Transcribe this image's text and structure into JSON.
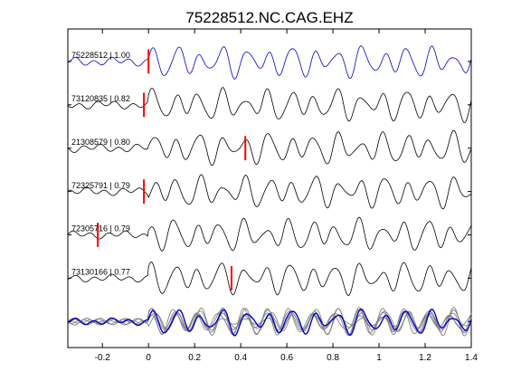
{
  "chart_data": {
    "type": "line",
    "title": "75228512.NC.CAG.EHZ",
    "xlabel": "",
    "ylabel": "",
    "xlim": [
      -0.35,
      1.4
    ],
    "xticks": [
      -0.2,
      0,
      0.2,
      0.4,
      0.6,
      0.8,
      1,
      1.2,
      1.4
    ],
    "xtick_labels": [
      "-0.2",
      "0",
      "0.2",
      "0.4",
      "0.6",
      "0.8",
      "1",
      "1.2",
      "1.4"
    ],
    "grid": false,
    "legend": "none",
    "colors": {
      "primary": "#0000cc",
      "trace": "#000000",
      "stack": "#808080",
      "pick": "#ff0000"
    },
    "series": [
      {
        "label": "75228512 | 1.00",
        "pick_time": 0.0,
        "color": "#0000cc",
        "seed": 1
      },
      {
        "label": "73120835 | 0.82",
        "pick_time": -0.02,
        "color": "#000000",
        "seed": 2
      },
      {
        "label": "21308579 | 0.80",
        "pick_time": 0.42,
        "color": "#000000",
        "seed": 3
      },
      {
        "label": "72325791 | 0.79",
        "pick_time": -0.02,
        "color": "#000000",
        "seed": 4
      },
      {
        "label": "72305716 | 0.79",
        "pick_time": -0.22,
        "color": "#000000",
        "seed": 5
      },
      {
        "label": "73130166 | 0.77",
        "pick_time": 0.36,
        "color": "#000000",
        "seed": 6
      }
    ]
  }
}
